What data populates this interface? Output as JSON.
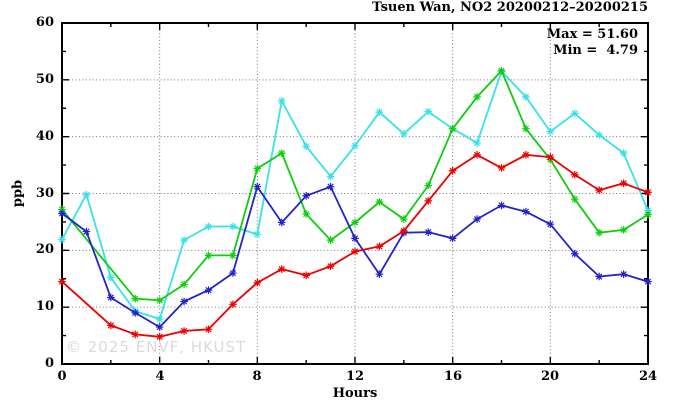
{
  "chart_data": {
    "type": "line",
    "title": "Tsuen Wan, NO2 20200212–20200215",
    "xlabel": "Hours",
    "ylabel": "ppb",
    "xlim": [
      0,
      24
    ],
    "ylim": [
      0,
      60
    ],
    "x_major_ticks": [
      0,
      4,
      8,
      12,
      16,
      20,
      24
    ],
    "x_minor_ticks": [
      2,
      6,
      10,
      14,
      18,
      22
    ],
    "y_major_ticks": [
      0,
      10,
      20,
      30,
      40,
      50,
      60
    ],
    "y_minor_ticks": [
      5,
      15,
      25,
      35,
      45,
      55
    ],
    "grid": {
      "style": "dotted",
      "color": "#787878",
      "x_lines": [
        4,
        8,
        12,
        16,
        20
      ],
      "y_lines": [
        10,
        20,
        30,
        40,
        50
      ]
    },
    "legend_position": "none",
    "marker_style": "asterisk",
    "annotations": {
      "max_text": "Max = 51.60",
      "min_text": "Min =  4.79"
    },
    "watermark": "© 2025 ENVF, HKUST",
    "series": [
      {
        "name": "series-cyan",
        "color": "#38e2e6",
        "points": [
          [
            0,
            21.9
          ],
          [
            1,
            29.8
          ],
          [
            2,
            15.2
          ],
          [
            3,
            9.3
          ],
          [
            4,
            7.9
          ],
          [
            5,
            21.8
          ],
          [
            6,
            24.2
          ],
          [
            7,
            24.2
          ],
          [
            8,
            22.8
          ],
          [
            9,
            46.3
          ],
          [
            10,
            38.3
          ],
          [
            11,
            33.0
          ],
          [
            12,
            38.4
          ],
          [
            13,
            44.3
          ],
          [
            14,
            40.5
          ],
          [
            15,
            44.4
          ],
          [
            16,
            41.4
          ],
          [
            17,
            38.9
          ],
          [
            18,
            51.5
          ],
          [
            19,
            47.0
          ],
          [
            20,
            40.9
          ],
          [
            21,
            44.1
          ],
          [
            22,
            40.3
          ],
          [
            23,
            37.1
          ],
          [
            24,
            27.0
          ]
        ]
      },
      {
        "name": "series-green",
        "color": "#0fce0f",
        "points": [
          [
            0,
            27.2
          ],
          [
            3,
            11.5
          ],
          [
            4,
            11.2
          ],
          [
            5,
            14.0
          ],
          [
            6,
            19.1
          ],
          [
            7,
            19.1
          ],
          [
            8,
            34.4
          ],
          [
            9,
            37.1
          ],
          [
            10,
            26.4
          ],
          [
            11,
            21.8
          ],
          [
            12,
            24.9
          ],
          [
            13,
            28.5
          ],
          [
            14,
            25.5
          ],
          [
            15,
            31.4
          ],
          [
            16,
            41.4
          ],
          [
            17,
            47.0
          ],
          [
            18,
            51.6
          ],
          [
            19,
            41.4
          ],
          [
            20,
            36.0
          ],
          [
            21,
            29.0
          ],
          [
            22,
            23.1
          ],
          [
            23,
            23.6
          ],
          [
            24,
            26.3
          ]
        ]
      },
      {
        "name": "series-blue",
        "color": "#2323cc",
        "points": [
          [
            0,
            26.5
          ],
          [
            1,
            23.3
          ],
          [
            2,
            11.7
          ],
          [
            3,
            9.0
          ],
          [
            4,
            6.5
          ],
          [
            5,
            11.0
          ],
          [
            6,
            13.0
          ],
          [
            7,
            16.0
          ],
          [
            8,
            31.2
          ],
          [
            9,
            24.9
          ],
          [
            10,
            29.6
          ],
          [
            11,
            31.2
          ],
          [
            12,
            22.1
          ],
          [
            13,
            15.8
          ],
          [
            14,
            23.1
          ],
          [
            15,
            23.2
          ],
          [
            16,
            22.1
          ],
          [
            17,
            25.5
          ],
          [
            18,
            27.9
          ],
          [
            19,
            26.8
          ],
          [
            20,
            24.6
          ],
          [
            21,
            19.4
          ],
          [
            22,
            15.4
          ],
          [
            23,
            15.8
          ],
          [
            24,
            14.5
          ]
        ]
      },
      {
        "name": "series-red",
        "color": "#ec0000",
        "points": [
          [
            0,
            14.5
          ],
          [
            2,
            6.8
          ],
          [
            3,
            5.2
          ],
          [
            4,
            4.79
          ],
          [
            5,
            5.8
          ],
          [
            6,
            6.1
          ],
          [
            7,
            10.5
          ],
          [
            8,
            14.3
          ],
          [
            9,
            16.7
          ],
          [
            10,
            15.6
          ],
          [
            11,
            17.2
          ],
          [
            12,
            19.8
          ],
          [
            13,
            20.7
          ],
          [
            14,
            23.4
          ],
          [
            15,
            28.7
          ],
          [
            16,
            34.0
          ],
          [
            17,
            36.8
          ],
          [
            18,
            34.5
          ],
          [
            19,
            36.8
          ],
          [
            20,
            36.4
          ],
          [
            21,
            33.3
          ],
          [
            22,
            30.6
          ],
          [
            23,
            31.8
          ],
          [
            24,
            30.2
          ]
        ]
      }
    ]
  }
}
